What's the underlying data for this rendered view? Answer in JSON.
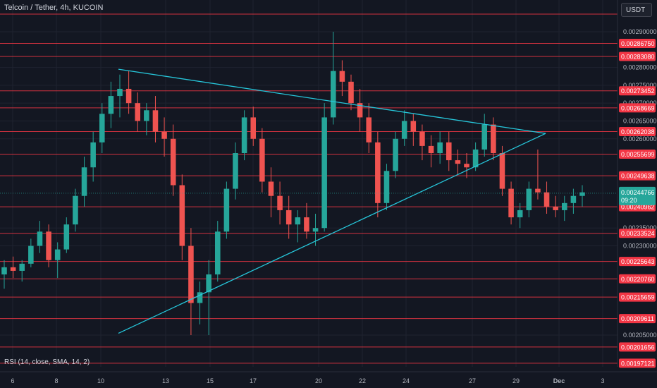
{
  "header": {
    "symbol_title": "Telcoin / Tether, 4h, KUCOIN",
    "currency_button": "USDT"
  },
  "indicator": {
    "rsi_label": "RSI (14, close, SMA, 14, 2)"
  },
  "colors": {
    "background": "#131722",
    "up_candle": "#26a69a",
    "down_candle": "#ef5350",
    "level_line": "#f23645",
    "trendline": "#26c6da",
    "grid": "#1f2330",
    "axis_text": "#b2b5be",
    "current_price_tag": "#26a69a"
  },
  "chart_data": {
    "type": "candlestick",
    "title": "Telcoin / Tether, 4h, KUCOIN",
    "y_axis_ticks": [
      "0.00290000",
      "0.00280000",
      "0.00275000",
      "0.00270000",
      "0.00265000",
      "0.00260000",
      "0.00235000",
      "0.00230000",
      "0.00205000"
    ],
    "x_axis_ticks": [
      "6",
      "8",
      "10",
      "13",
      "15",
      "17",
      "20",
      "22",
      "24",
      "27",
      "29",
      "Dec",
      "3"
    ],
    "horizontal_levels": [
      "0.00286750",
      "0.00283080",
      "0.00273452",
      "0.00268669",
      "0.00262038",
      "0.00255699",
      "0.00249638",
      "0.00240962",
      "0.00233524",
      "0.00225643",
      "0.00220760",
      "0.00215659",
      "0.00209611",
      "0.00201656",
      "0.00197121"
    ],
    "current_price": "0.00244766",
    "countdown": "09:20",
    "trendlines": [
      {
        "from": {
          "x": "11",
          "y": 0.002795
        },
        "to": {
          "x": "Nov 30",
          "y": 0.002615
        }
      },
      {
        "from": {
          "x": "11",
          "y": 0.002055
        },
        "to": {
          "x": "Nov 30",
          "y": 0.002615
        }
      }
    ],
    "candles": [
      [
        0.00222,
        0.00226,
        0.00218,
        0.00224
      ],
      [
        0.00224,
        0.00227,
        0.00221,
        0.00223
      ],
      [
        0.00223,
        0.00226,
        0.0022,
        0.00225
      ],
      [
        0.00225,
        0.00232,
        0.00224,
        0.0023
      ],
      [
        0.0023,
        0.00237,
        0.00228,
        0.00234
      ],
      [
        0.00234,
        0.00236,
        0.00224,
        0.00226
      ],
      [
        0.00226,
        0.00231,
        0.00221,
        0.00229
      ],
      [
        0.00229,
        0.00238,
        0.00228,
        0.00236
      ],
      [
        0.00236,
        0.00246,
        0.00234,
        0.00244
      ],
      [
        0.00244,
        0.00255,
        0.00241,
        0.00252
      ],
      [
        0.00252,
        0.00262,
        0.00248,
        0.00259
      ],
      [
        0.00259,
        0.0027,
        0.00256,
        0.00267
      ],
      [
        0.00267,
        0.00276,
        0.00263,
        0.00272
      ],
      [
        0.00272,
        0.00278,
        0.00266,
        0.00274
      ],
      [
        0.00274,
        0.00279,
        0.00267,
        0.0027
      ],
      [
        0.0027,
        0.00273,
        0.00262,
        0.00265
      ],
      [
        0.00265,
        0.0027,
        0.00261,
        0.00268
      ],
      [
        0.00268,
        0.00272,
        0.00259,
        0.00262
      ],
      [
        0.00262,
        0.00266,
        0.00255,
        0.0026
      ],
      [
        0.0026,
        0.00264,
        0.00244,
        0.00247
      ],
      [
        0.00247,
        0.0025,
        0.00226,
        0.0023
      ],
      [
        0.0023,
        0.00235,
        0.00205,
        0.00214
      ],
      [
        0.00214,
        0.0022,
        0.00208,
        0.00217
      ],
      [
        0.00217,
        0.00226,
        0.00205,
        0.00222
      ],
      [
        0.00222,
        0.00237,
        0.0022,
        0.00234
      ],
      [
        0.00234,
        0.00248,
        0.00232,
        0.00246
      ],
      [
        0.00246,
        0.00259,
        0.00243,
        0.00256
      ],
      [
        0.00256,
        0.00268,
        0.00254,
        0.00266
      ],
      [
        0.00266,
        0.00269,
        0.00258,
        0.0026
      ],
      [
        0.0026,
        0.00263,
        0.00245,
        0.00248
      ],
      [
        0.00248,
        0.00252,
        0.00238,
        0.00244
      ],
      [
        0.00244,
        0.00248,
        0.00236,
        0.0024
      ],
      [
        0.0024,
        0.00244,
        0.00232,
        0.00236
      ],
      [
        0.00236,
        0.0024,
        0.00231,
        0.00238
      ],
      [
        0.00238,
        0.00242,
        0.00232,
        0.00234
      ],
      [
        0.00234,
        0.00239,
        0.0023,
        0.00235
      ],
      [
        0.00235,
        0.0027,
        0.00234,
        0.00266
      ],
      [
        0.00266,
        0.0029,
        0.00264,
        0.00279
      ],
      [
        0.00279,
        0.00282,
        0.00272,
        0.00276
      ],
      [
        0.00276,
        0.00278,
        0.00268,
        0.0027
      ],
      [
        0.0027,
        0.00274,
        0.00262,
        0.00266
      ],
      [
        0.00266,
        0.0027,
        0.00256,
        0.00259
      ],
      [
        0.00259,
        0.00262,
        0.00238,
        0.00242
      ],
      [
        0.00242,
        0.00253,
        0.0024,
        0.00251
      ],
      [
        0.00251,
        0.00262,
        0.00249,
        0.0026
      ],
      [
        0.0026,
        0.00268,
        0.00258,
        0.00265
      ],
      [
        0.00265,
        0.00267,
        0.00258,
        0.00262
      ],
      [
        0.00262,
        0.00264,
        0.00254,
        0.00258
      ],
      [
        0.00258,
        0.00261,
        0.00252,
        0.00256
      ],
      [
        0.00256,
        0.00262,
        0.00253,
        0.00259
      ],
      [
        0.00259,
        0.00262,
        0.00251,
        0.00254
      ],
      [
        0.00254,
        0.00257,
        0.0025,
        0.00253
      ],
      [
        0.00253,
        0.00256,
        0.00249,
        0.00252
      ],
      [
        0.00252,
        0.00259,
        0.00251,
        0.00257
      ],
      [
        0.00257,
        0.00267,
        0.00255,
        0.00264
      ],
      [
        0.00264,
        0.00266,
        0.00254,
        0.00256
      ],
      [
        0.00256,
        0.00258,
        0.00244,
        0.00246
      ],
      [
        0.00246,
        0.00248,
        0.00236,
        0.00238
      ],
      [
        0.00238,
        0.00242,
        0.00235,
        0.0024
      ],
      [
        0.0024,
        0.00248,
        0.00238,
        0.00246
      ],
      [
        0.00246,
        0.00257,
        0.00243,
        0.00245
      ],
      [
        0.00245,
        0.00248,
        0.00239,
        0.00241
      ],
      [
        0.00241,
        0.00244,
        0.00238,
        0.0024
      ],
      [
        0.0024,
        0.00244,
        0.00237,
        0.00242
      ],
      [
        0.00242,
        0.00246,
        0.00239,
        0.00244
      ],
      [
        0.00244,
        0.00247,
        0.00241,
        0.00245
      ]
    ]
  }
}
